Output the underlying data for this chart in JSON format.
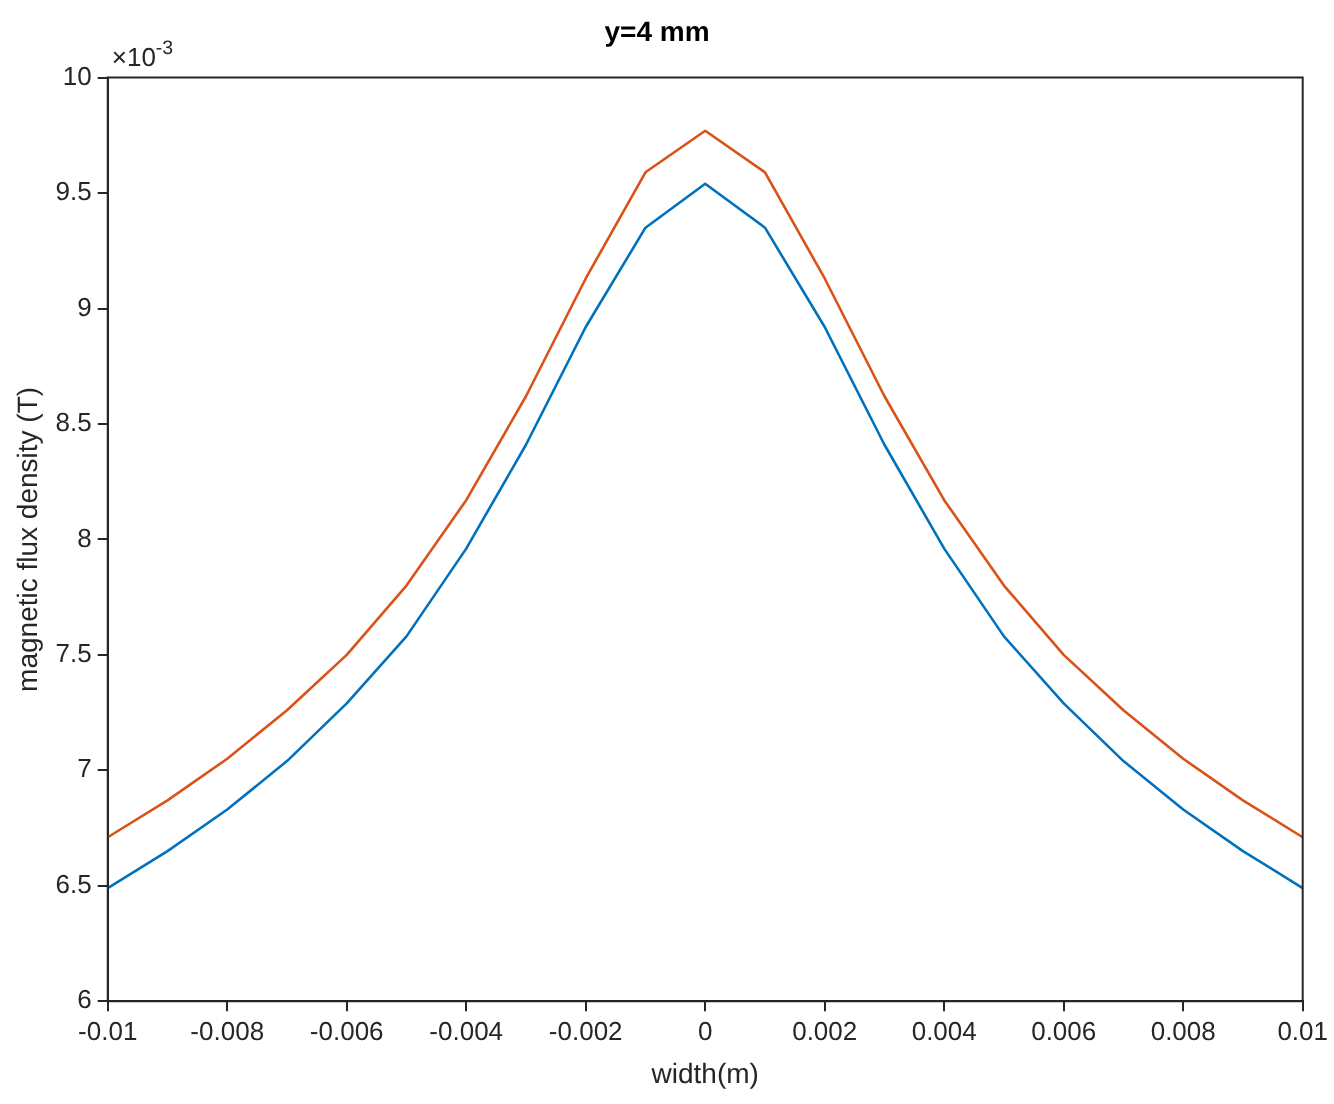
{
  "chart_data": {
    "type": "line",
    "title": "y=4 mm",
    "xlabel": "width(m)",
    "ylabel": "magnetic flux density (T)",
    "annotations": [
      "×10$^{-3}$"
    ],
    "x": [
      -0.01,
      -0.009,
      -0.008,
      -0.007,
      -0.006,
      -0.005,
      -0.004,
      -0.003,
      -0.002,
      -0.001,
      0,
      0.001,
      0.002,
      0.003,
      0.004,
      0.005,
      0.006,
      0.007,
      0.008,
      0.009,
      0.01
    ],
    "series": [
      {
        "color": "#d95319",
        "values": [
          6.71,
          6.87,
          7.05,
          7.26,
          7.5,
          7.8,
          8.17,
          8.62,
          9.13,
          9.59,
          9.77,
          9.59,
          9.13,
          8.62,
          8.17,
          7.8,
          7.5,
          7.26,
          7.05,
          6.87,
          6.71
        ]
      },
      {
        "color": "#0072bd",
        "values": [
          6.49,
          6.65,
          6.83,
          7.04,
          7.29,
          7.58,
          7.96,
          8.41,
          8.92,
          9.35,
          9.54,
          9.35,
          8.92,
          8.41,
          7.96,
          7.58,
          7.29,
          7.04,
          6.83,
          6.65,
          6.49
        ]
      }
    ],
    "xlim": [
      -0.01,
      0.01
    ],
    "xticks": [
      -0.01,
      -0.008,
      -0.006,
      -0.004,
      -0.002,
      0,
      0.002,
      0.004,
      0.006,
      0.008,
      0.01
    ],
    "ylim": [
      6,
      10
    ],
    "yticks": [
      6,
      6.5,
      7,
      7.5,
      8,
      8.5,
      9,
      9.5,
      10
    ],
    "grid": false,
    "legend": false,
    "marker": "none",
    "line_style": "solid"
  }
}
